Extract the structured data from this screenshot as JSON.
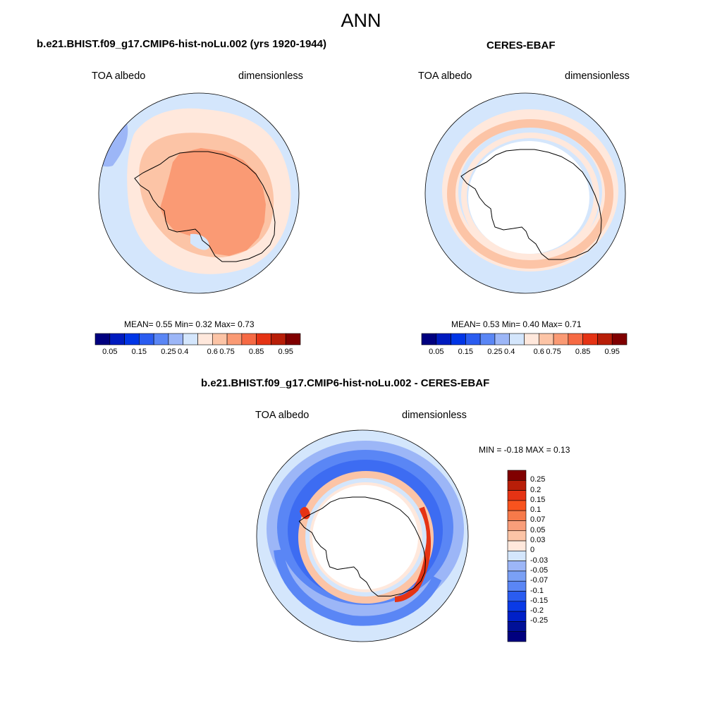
{
  "figure": {
    "title": "ANN"
  },
  "panels": [
    {
      "title": "b.e21.BHIST.f09_g17.CMIP6-hist-noLu.002 (yrs 1920-1944)",
      "left_label": "TOA albedo",
      "right_label": "dimensionless",
      "stats": {
        "mean_label": "MEAN=",
        "mean": "0.55",
        "min_label": "Min=",
        "min": "0.32",
        "max_label": "Max=",
        "max": "0.73"
      }
    },
    {
      "title": "CERES-EBAF",
      "left_label": "TOA albedo",
      "right_label": "dimensionless",
      "stats": {
        "mean_label": "MEAN=",
        "mean": "0.53",
        "min_label": "Min=",
        "min": "0.40",
        "max_label": "Max=",
        "max": "0.71"
      }
    },
    {
      "title": "b.e21.BHIST.f09_g17.CMIP6-hist-noLu.002 - CERES-EBAF",
      "left_label": "TOA albedo",
      "right_label": "dimensionless",
      "stats_text": "MIN =  -0.18 MAX =   0.13"
    }
  ],
  "colorbar_abs": {
    "ticks": [
      "0.05",
      "0.15",
      "0.25",
      "0.4",
      "0.6",
      "0.75",
      "0.85",
      "0.95"
    ],
    "colors": [
      "#00007f",
      "#001bbf",
      "#0035e6",
      "#2a5cf0",
      "#5a86f5",
      "#9cb6f7",
      "#d4e6fc",
      "#ffe8dc",
      "#fcc4a6",
      "#fa9a74",
      "#f66a44",
      "#e53314",
      "#b81e08",
      "#800000"
    ]
  },
  "colorbar_diff": {
    "ticks": [
      "0.25",
      "0.2",
      "0.15",
      "0.1",
      "0.07",
      "0.05",
      "0.03",
      "0",
      "-0.03",
      "-0.05",
      "-0.07",
      "-0.1",
      "-0.15",
      "-0.2",
      "-0.25"
    ],
    "colors": [
      "#800000",
      "#b81e08",
      "#e53314",
      "#f8531e",
      "#f77a4a",
      "#f99e7a",
      "#fcc4a6",
      "#ffe8dc",
      "#d4e6fc",
      "#9cb6f7",
      "#7aa0f5",
      "#5a86f5",
      "#2a5cf0",
      "#0a3ae6",
      "#0020c8",
      "#001098",
      "#00007f"
    ]
  },
  "map_colors": {
    "ocean_light": "#d4e6fc",
    "pale_orange": "#ffe8dc",
    "light_orange": "#fcc4a6",
    "mid_orange": "#fa9a74",
    "blue_light": "#9cb6f7",
    "blue_mid": "#5a86f5",
    "blue_dark": "#2a5cf0",
    "red": "#e53314"
  }
}
